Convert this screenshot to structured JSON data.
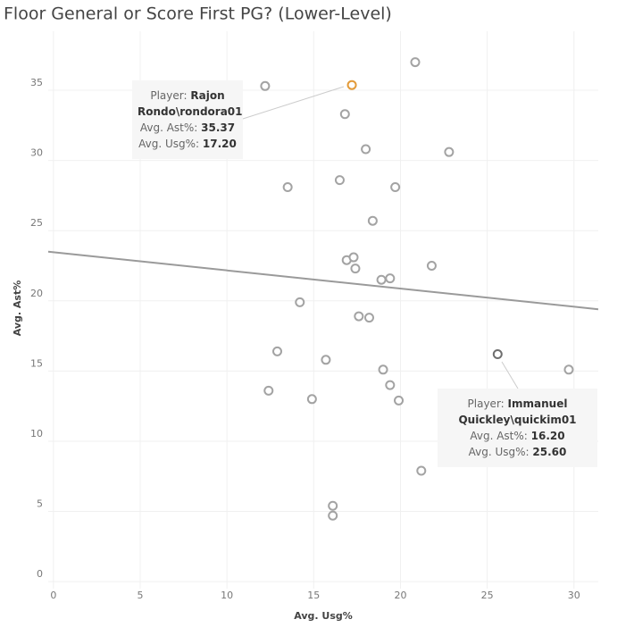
{
  "chart_data": {
    "type": "scatter",
    "title": "Floor General or Score First PG? (Lower-Level)",
    "x_label": "Avg. Usg%",
    "y_label": "Avg. Ast%",
    "x": [
      12.2,
      17.2,
      20.85,
      16.8,
      18.0,
      22.8,
      13.5,
      16.5,
      19.7,
      18.4,
      16.9,
      17.3,
      17.4,
      21.8,
      18.9,
      19.4,
      14.2,
      17.6,
      18.2,
      25.6,
      29.7,
      12.9,
      15.7,
      19.0,
      19.4,
      19.9,
      12.4,
      14.9,
      21.2,
      16.1,
      16.1
    ],
    "y": [
      35.3,
      35.37,
      37.0,
      33.3,
      30.8,
      30.6,
      28.1,
      28.6,
      28.1,
      25.7,
      22.9,
      23.1,
      22.3,
      22.5,
      21.5,
      21.6,
      19.9,
      18.9,
      18.8,
      16.2,
      15.1,
      16.4,
      15.8,
      15.1,
      14.0,
      12.9,
      13.6,
      13.0,
      7.9,
      5.4,
      4.7
    ],
    "colors": [
      "#a3a3a3",
      "#e39b3a",
      "#a3a3a3",
      "#a3a3a3",
      "#a3a3a3",
      "#a3a3a3",
      "#a3a3a3",
      "#a3a3a3",
      "#a3a3a3",
      "#a3a3a3",
      "#a3a3a3",
      "#a3a3a3",
      "#a3a3a3",
      "#a3a3a3",
      "#a3a3a3",
      "#a3a3a3",
      "#a3a3a3",
      "#a3a3a3",
      "#a3a3a3",
      "#6e6e6e",
      "#a3a3a3",
      "#a3a3a3",
      "#a3a3a3",
      "#a3a3a3",
      "#a3a3a3",
      "#a3a3a3",
      "#a3a3a3",
      "#a3a3a3",
      "#a3a3a3",
      "#a3a3a3",
      "#a3a3a3"
    ],
    "trend_line": {
      "x": [
        -0.3,
        31.4
      ],
      "y": [
        23.5,
        19.4
      ],
      "color": "#9a9a9a"
    },
    "xlim": [
      -0.3,
      31.4
    ],
    "ylim": [
      -0.5,
      39.2
    ],
    "xticks": [
      0,
      5,
      10,
      15,
      20,
      25,
      30
    ],
    "yticks": [
      0,
      5,
      10,
      15,
      20,
      25,
      30,
      35
    ],
    "grid": true,
    "annotations": [
      {
        "player_label": "Player:",
        "player": "Rajon Rondo\\rondora01",
        "ast_label": "Avg. Ast%:",
        "ast": "35.37",
        "usg_label": "Avg. Usg%:",
        "usg": "17.20"
      },
      {
        "player_label": "Player:",
        "player": "Immanuel Quickley\\quickim01",
        "ast_label": "Avg. Ast%:",
        "ast": "16.20",
        "usg_label": "Avg. Usg%:",
        "usg": "25.60"
      }
    ]
  }
}
